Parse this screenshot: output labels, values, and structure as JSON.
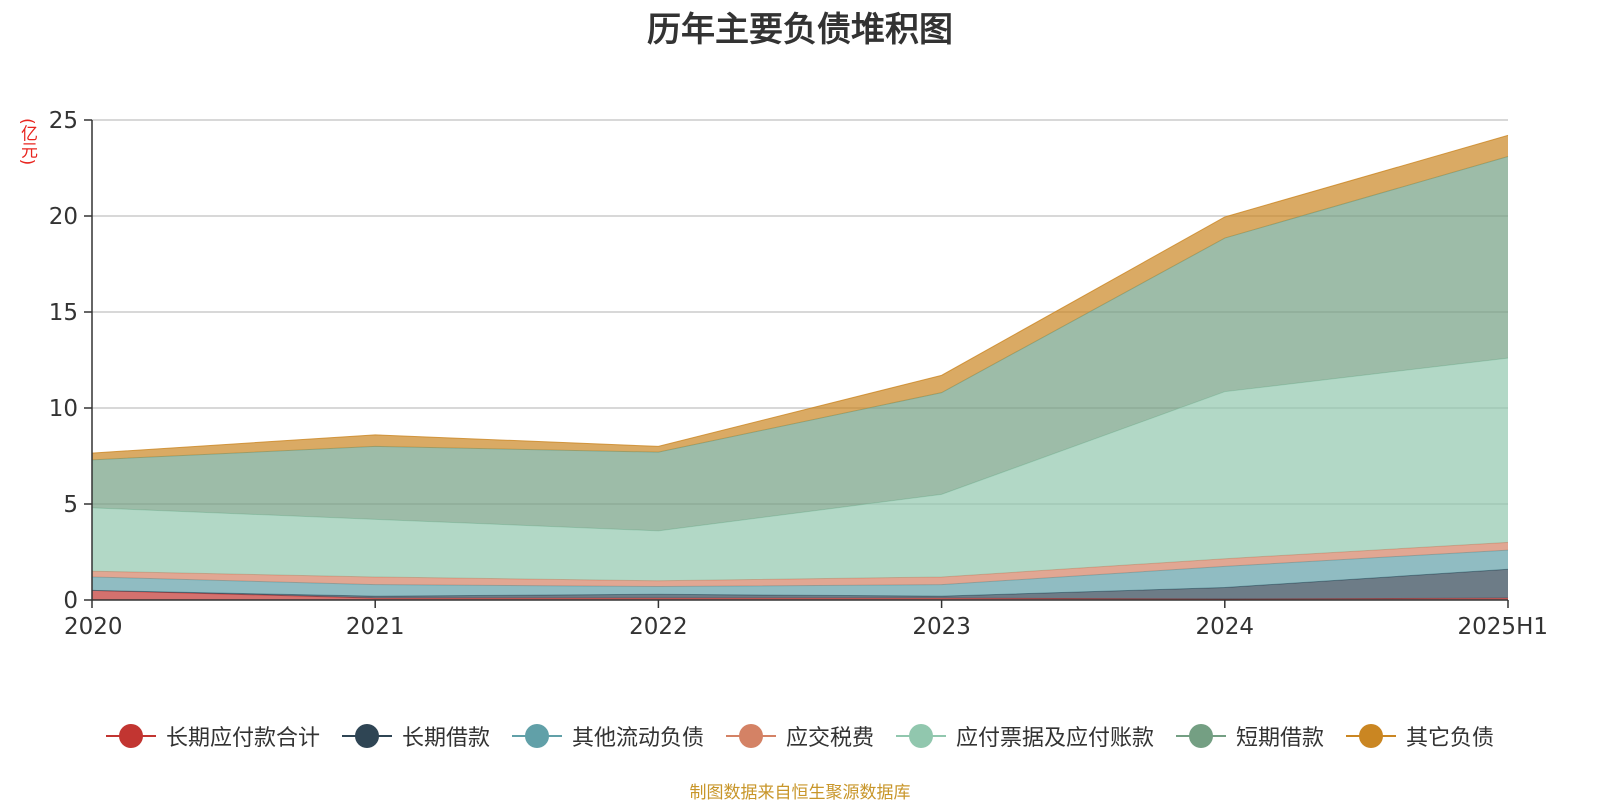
{
  "chart_data": {
    "type": "area",
    "stacked": true,
    "title": "历年主要负债堆积图",
    "unit_label": "(亿元)",
    "categories": [
      "2020",
      "2021",
      "2022",
      "2023",
      "2024",
      "2025H1"
    ],
    "ylim": [
      0,
      25
    ],
    "yticks": [
      0,
      5,
      10,
      15,
      20,
      25
    ],
    "grid": true,
    "legend_position": "bottom",
    "series": [
      {
        "name": "长期应付款合计",
        "color": "#c23531",
        "values": [
          0.5,
          0.1,
          0.1,
          0.1,
          0.05,
          0.1
        ]
      },
      {
        "name": "长期借款",
        "color": "#2f4554",
        "values": [
          0.0,
          0.1,
          0.2,
          0.1,
          0.6,
          1.5
        ]
      },
      {
        "name": "其他流动负债",
        "color": "#61a0a8",
        "values": [
          0.7,
          0.6,
          0.4,
          0.6,
          1.1,
          1.0
        ]
      },
      {
        "name": "应交税费",
        "color": "#d48265",
        "values": [
          0.3,
          0.4,
          0.3,
          0.4,
          0.4,
          0.4
        ]
      },
      {
        "name": "应付票据及应付账款",
        "color": "#91c7ae",
        "values": [
          3.3,
          3.0,
          2.6,
          4.3,
          8.7,
          9.6
        ]
      },
      {
        "name": "短期借款",
        "color": "#749f83",
        "values": [
          2.5,
          3.8,
          4.1,
          5.3,
          8.0,
          10.5
        ]
      },
      {
        "name": "其它负债",
        "color": "#ca8622",
        "values": [
          0.35,
          0.6,
          0.3,
          0.9,
          1.1,
          1.1
        ]
      }
    ]
  },
  "footer": {
    "source": "制图数据来自恒生聚源数据库"
  }
}
